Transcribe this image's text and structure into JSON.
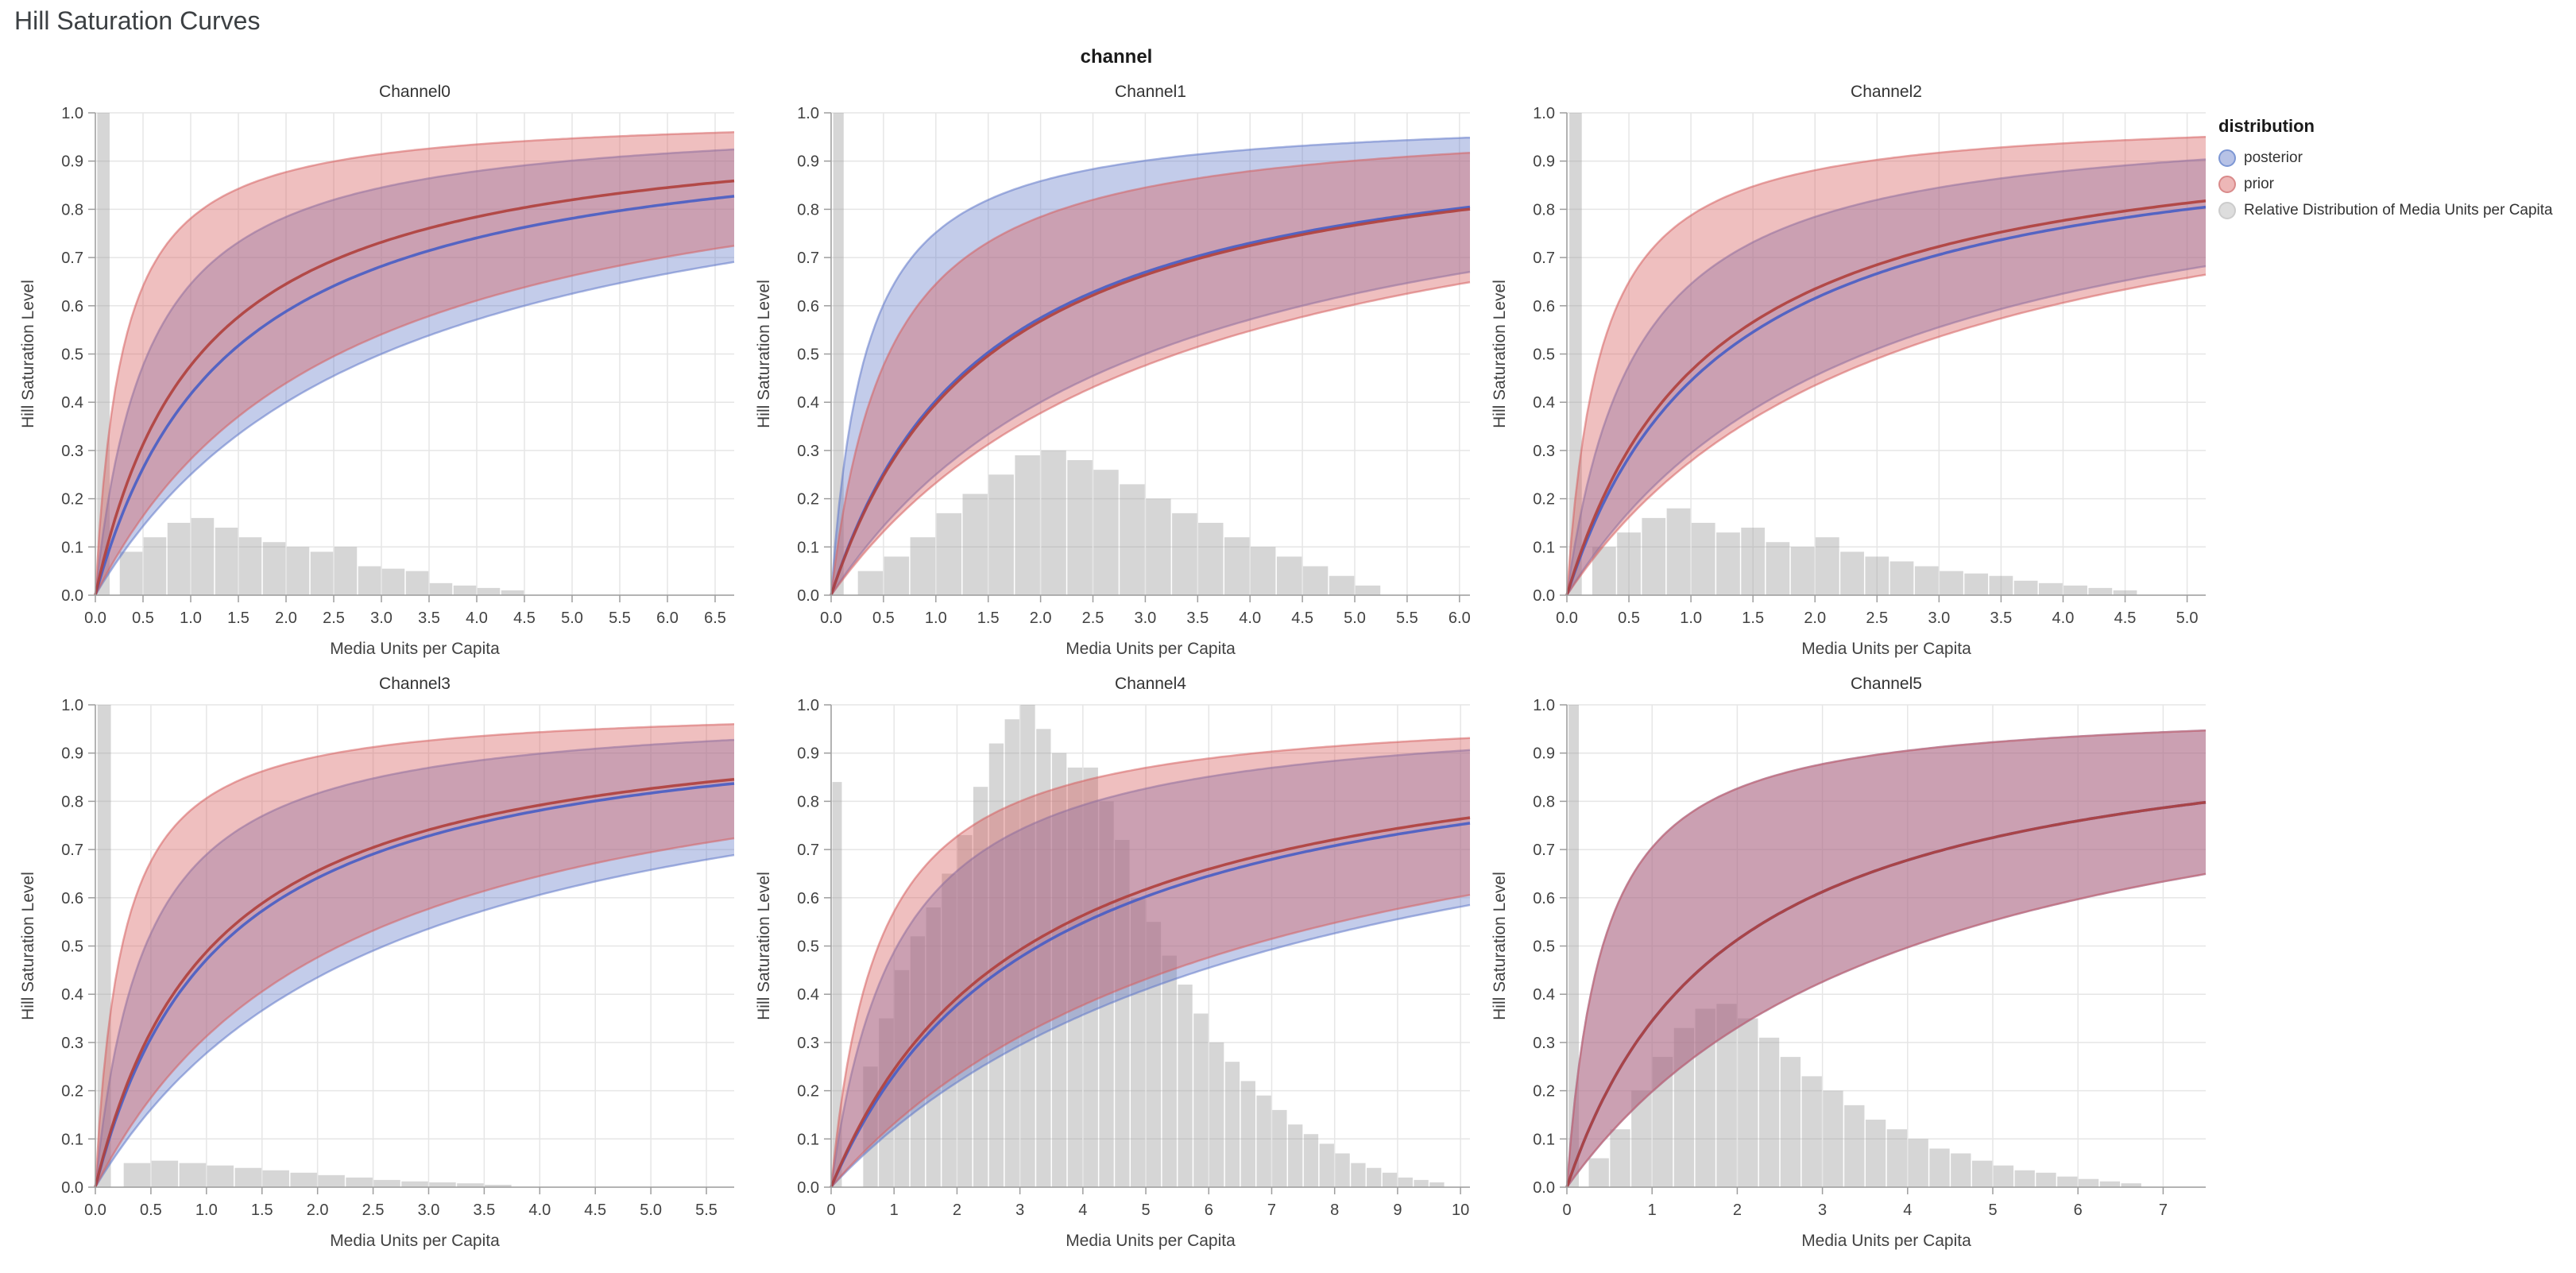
{
  "page": {
    "title": "Hill Saturation Curves"
  },
  "facet": {
    "title": "channel"
  },
  "legend": {
    "title": "distribution",
    "items": [
      {
        "label": "posterior",
        "swatch_fill": "rgba(96,120,200,0.45)",
        "swatch_stroke": "#7d97d4"
      },
      {
        "label": "prior",
        "swatch_fill": "rgba(214,96,96,0.45)",
        "swatch_stroke": "#d98a8a"
      },
      {
        "label": "Relative Distribution of Media Units per Capita",
        "swatch_fill": "rgba(158,158,158,0.35)",
        "swatch_stroke": "#cccccc"
      }
    ]
  },
  "colors": {
    "posterior_line": "#4a5ec4",
    "prior_line": "#b0413e",
    "posterior_band": "rgba(96,120,200,0.38)",
    "prior_band": "rgba(214,96,96,0.40)",
    "posterior_edge": "rgba(96,120,200,0.55)",
    "prior_edge": "rgba(214,96,96,0.55)",
    "histogram": "rgba(158,158,158,0.42)",
    "grid": "#e6e6e6",
    "axis": "#9e9e9e",
    "tick_label": "#424242",
    "title": "#333333"
  },
  "axis": {
    "y_ticks": [
      0,
      0.1,
      0.2,
      0.3,
      0.4,
      0.5,
      0.6,
      0.7,
      0.8,
      0.9,
      1.0
    ],
    "y_tick_labels": [
      "0.0",
      "0.1",
      "0.2",
      "0.3",
      "0.4",
      "0.5",
      "0.6",
      "0.7",
      "0.8",
      "0.9",
      "1.0"
    ]
  },
  "chart_data": [
    {
      "type": "line",
      "title": "Channel0",
      "xlabel": "Media Units per Capita",
      "ylabel": "Hill Saturation Level",
      "xlim": [
        0,
        6.7
      ],
      "ylim": [
        0,
        1
      ],
      "x_ticks": [
        0,
        0.5,
        1,
        1.5,
        2,
        2.5,
        3,
        3.5,
        4,
        4.5,
        5,
        5.5,
        6,
        6.5
      ],
      "x_tick_labels": [
        "0.0",
        "0.5",
        "1.0",
        "1.5",
        "2.0",
        "2.5",
        "3.0",
        "3.5",
        "4.0",
        "4.5",
        "5.0",
        "5.5",
        "6.0",
        "6.5"
      ],
      "series": [
        {
          "name": "posterior",
          "hill": {
            "K": 1.4,
            "s": 1
          },
          "band": {
            "upper_K": 0.55,
            "lower_K": 3.0
          }
        },
        {
          "name": "prior",
          "hill": {
            "K": 1.1,
            "s": 1
          },
          "band": {
            "upper_K": 0.28,
            "lower_K": 2.55
          }
        }
      ],
      "histogram": {
        "label": "Relative Distribution of Media Units per Capita",
        "zero_bar": [
          0.02,
          0.13,
          1.0
        ],
        "x0": 0.25,
        "bin_width": 0.25,
        "heights": [
          0.09,
          0.12,
          0.15,
          0.16,
          0.14,
          0.12,
          0.11,
          0.1,
          0.09,
          0.1,
          0.06,
          0.055,
          0.05,
          0.025,
          0.02,
          0.015,
          0.01
        ]
      }
    },
    {
      "type": "line",
      "title": "Channel1",
      "xlabel": "Media Units per Capita",
      "ylabel": "Hill Saturation Level",
      "xlim": [
        0,
        6.1
      ],
      "ylim": [
        0,
        1
      ],
      "x_ticks": [
        0,
        0.5,
        1,
        1.5,
        2,
        2.5,
        3,
        3.5,
        4,
        4.5,
        5,
        5.5,
        6
      ],
      "x_tick_labels": [
        "0.0",
        "0.5",
        "1.0",
        "1.5",
        "2.0",
        "2.5",
        "3.0",
        "3.5",
        "4.0",
        "4.5",
        "5.0",
        "5.5",
        "6.0"
      ],
      "series": [
        {
          "name": "posterior",
          "hill": {
            "K": 1.48,
            "s": 1
          },
          "band": {
            "upper_K": 0.33,
            "lower_K": 3.0
          }
        },
        {
          "name": "prior",
          "hill": {
            "K": 1.52,
            "s": 1
          },
          "band": {
            "upper_K": 0.55,
            "lower_K": 3.3
          }
        }
      ],
      "histogram": {
        "label": "Relative Distribution of Media Units per Capita",
        "zero_bar": [
          0.02,
          0.1,
          1.0
        ],
        "x0": 0.25,
        "bin_width": 0.25,
        "heights": [
          0.05,
          0.08,
          0.12,
          0.17,
          0.21,
          0.25,
          0.29,
          0.3,
          0.28,
          0.26,
          0.23,
          0.2,
          0.17,
          0.15,
          0.12,
          0.1,
          0.08,
          0.06,
          0.04,
          0.02
        ]
      }
    },
    {
      "type": "line",
      "title": "Channel2",
      "xlabel": "Media Units per Capita",
      "ylabel": "Hill Saturation Level",
      "xlim": [
        0,
        5.15
      ],
      "ylim": [
        0,
        1
      ],
      "x_ticks": [
        0,
        0.5,
        1,
        1.5,
        2,
        2.5,
        3,
        3.5,
        4,
        4.5,
        5
      ],
      "x_tick_labels": [
        "0.0",
        "0.5",
        "1.0",
        "1.5",
        "2.0",
        "2.5",
        "3.0",
        "3.5",
        "4.0",
        "4.5",
        "5.0"
      ],
      "series": [
        {
          "name": "posterior",
          "hill": {
            "K": 1.25,
            "s": 1
          },
          "band": {
            "upper_K": 0.55,
            "lower_K": 2.4
          }
        },
        {
          "name": "prior",
          "hill": {
            "K": 1.15,
            "s": 1
          },
          "band": {
            "upper_K": 0.27,
            "lower_K": 2.6
          }
        }
      ],
      "histogram": {
        "label": "Relative Distribution of Media Units per Capita",
        "zero_bar": [
          0.02,
          0.1,
          1.0
        ],
        "x0": 0.2,
        "bin_width": 0.2,
        "heights": [
          0.1,
          0.13,
          0.16,
          0.18,
          0.15,
          0.13,
          0.14,
          0.11,
          0.1,
          0.12,
          0.09,
          0.08,
          0.07,
          0.06,
          0.05,
          0.045,
          0.04,
          0.03,
          0.025,
          0.02,
          0.015,
          0.01
        ]
      }
    },
    {
      "type": "line",
      "title": "Channel3",
      "xlabel": "Media Units per Capita",
      "ylabel": "Hill Saturation Level",
      "xlim": [
        0,
        5.75
      ],
      "ylim": [
        0,
        1
      ],
      "x_ticks": [
        0,
        0.5,
        1,
        1.5,
        2,
        2.5,
        3,
        3.5,
        4,
        4.5,
        5,
        5.5
      ],
      "x_tick_labels": [
        "0.0",
        "0.5",
        "1.0",
        "1.5",
        "2.0",
        "2.5",
        "3.0",
        "3.5",
        "4.0",
        "4.5",
        "5.0",
        "5.5"
      ],
      "series": [
        {
          "name": "posterior",
          "hill": {
            "K": 1.12,
            "s": 1
          },
          "band": {
            "upper_K": 0.45,
            "lower_K": 2.6
          }
        },
        {
          "name": "prior",
          "hill": {
            "K": 1.05,
            "s": 1
          },
          "band": {
            "upper_K": 0.24,
            "lower_K": 2.2
          }
        }
      ],
      "histogram": {
        "label": "Relative Distribution of Media Units per Capita",
        "zero_bar": [
          0.02,
          0.12,
          1.0
        ],
        "x0": 0.25,
        "bin_width": 0.25,
        "heights": [
          0.05,
          0.055,
          0.05,
          0.045,
          0.04,
          0.035,
          0.03,
          0.025,
          0.02,
          0.015,
          0.012,
          0.01,
          0.008,
          0.005
        ]
      }
    },
    {
      "type": "line",
      "title": "Channel4",
      "xlabel": "Media Units per Capita",
      "ylabel": "Hill Saturation Level",
      "xlim": [
        0,
        10.15
      ],
      "ylim": [
        0,
        1
      ],
      "x_ticks": [
        0,
        1,
        2,
        3,
        4,
        5,
        6,
        7,
        8,
        9,
        10
      ],
      "x_tick_labels": [
        "0",
        "1",
        "2",
        "3",
        "4",
        "5",
        "6",
        "7",
        "8",
        "9",
        "10"
      ],
      "series": [
        {
          "name": "posterior",
          "hill": {
            "K": 3.3,
            "s": 1
          },
          "band": {
            "upper_K": 1.05,
            "lower_K": 7.2
          }
        },
        {
          "name": "prior",
          "hill": {
            "K": 3.1,
            "s": 1
          },
          "band": {
            "upper_K": 0.75,
            "lower_K": 6.6
          }
        }
      ],
      "histogram": {
        "label": "Relative Distribution of Media Units per Capita",
        "zero_bar": [
          0.02,
          0.15,
          0.84
        ],
        "x0": 0.5,
        "bin_width": 0.25,
        "heights": [
          0.25,
          0.35,
          0.45,
          0.52,
          0.58,
          0.65,
          0.73,
          0.83,
          0.92,
          0.97,
          1.0,
          0.95,
          0.9,
          0.87,
          0.87,
          0.8,
          0.72,
          0.6,
          0.55,
          0.48,
          0.42,
          0.36,
          0.3,
          0.26,
          0.22,
          0.19,
          0.16,
          0.13,
          0.11,
          0.09,
          0.07,
          0.05,
          0.04,
          0.03,
          0.02,
          0.015,
          0.01
        ]
      }
    },
    {
      "type": "line",
      "title": "Channel5",
      "xlabel": "Media Units per Capita",
      "ylabel": "Hill Saturation Level",
      "xlim": [
        0,
        7.5
      ],
      "ylim": [
        0,
        1
      ],
      "x_ticks": [
        0,
        1,
        2,
        3,
        4,
        5,
        6,
        7
      ],
      "x_tick_labels": [
        "0",
        "1",
        "2",
        "3",
        "4",
        "5",
        "6",
        "7"
      ],
      "series": [
        {
          "name": "posterior",
          "hill": {
            "K": 1.9,
            "s": 1
          },
          "band": {
            "upper_K": 0.42,
            "lower_K": 4.05
          }
        },
        {
          "name": "prior",
          "hill": {
            "K": 1.9,
            "s": 1
          },
          "band": {
            "upper_K": 0.42,
            "lower_K": 4.05
          }
        }
      ],
      "histogram": {
        "label": "Relative Distribution of Media Units per Capita",
        "zero_bar": [
          0.02,
          0.12,
          1.0
        ],
        "x0": 0.25,
        "bin_width": 0.25,
        "heights": [
          0.06,
          0.12,
          0.2,
          0.27,
          0.33,
          0.37,
          0.38,
          0.35,
          0.31,
          0.27,
          0.23,
          0.2,
          0.17,
          0.14,
          0.12,
          0.1,
          0.08,
          0.07,
          0.055,
          0.045,
          0.035,
          0.03,
          0.022,
          0.017,
          0.012,
          0.008
        ]
      }
    }
  ]
}
